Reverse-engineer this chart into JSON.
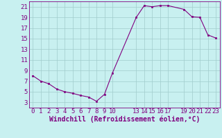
{
  "x": [
    0,
    1,
    2,
    3,
    4,
    5,
    6,
    7,
    8,
    9,
    10,
    13,
    14,
    15,
    16,
    17,
    19,
    20,
    21,
    22,
    23
  ],
  "y": [
    8.0,
    7.0,
    6.5,
    5.5,
    5.0,
    4.7,
    4.3,
    4.0,
    3.2,
    4.5,
    8.5,
    19.0,
    21.2,
    21.0,
    21.2,
    21.2,
    20.5,
    19.1,
    19.0,
    15.7,
    15.1
  ],
  "line_color": "#800080",
  "marker_color": "#800080",
  "bg_color": "#c8f0f0",
  "grid_color": "#a0cccc",
  "xlabel": "Windchill (Refroidissement éolien,°C)",
  "xlim": [
    -0.5,
    23.5
  ],
  "ylim": [
    2,
    22
  ],
  "yticks": [
    3,
    5,
    7,
    9,
    11,
    13,
    15,
    17,
    19,
    21
  ],
  "xticks": [
    0,
    1,
    2,
    3,
    4,
    5,
    6,
    7,
    8,
    9,
    10,
    13,
    14,
    15,
    16,
    17,
    19,
    20,
    21,
    22,
    23
  ],
  "tick_label_color": "#800080",
  "axis_color": "#800080",
  "font_size": 6.5,
  "xlabel_font_size": 7.0
}
